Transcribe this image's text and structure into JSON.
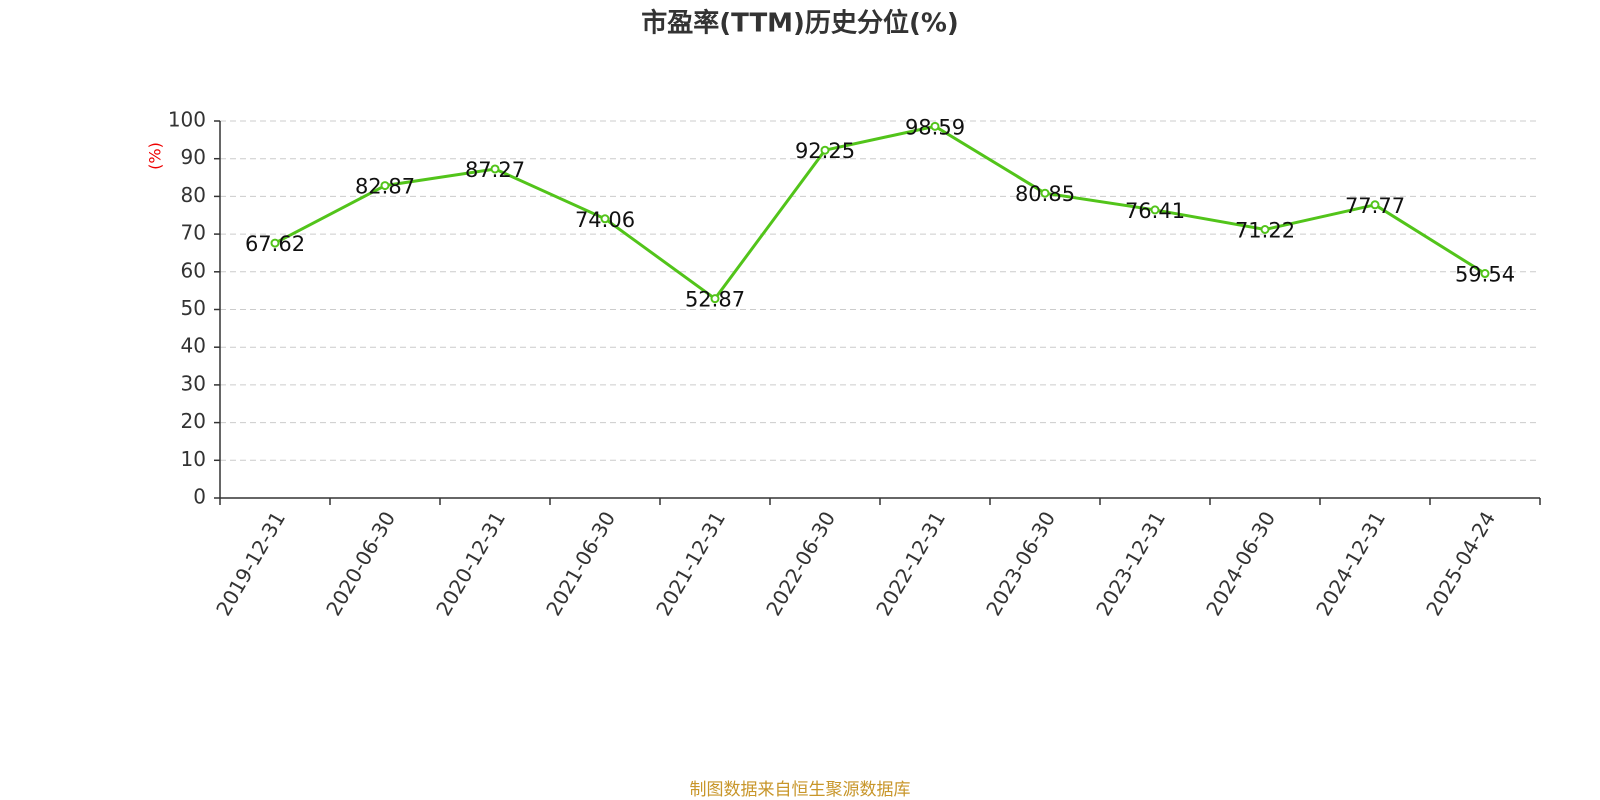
{
  "chart_data": {
    "type": "line",
    "title": "市盈率(TTM)历史分位(%)",
    "y_label": "(%)",
    "categories": [
      "2019-12-31",
      "2020-06-30",
      "2020-12-31",
      "2021-06-30",
      "2021-12-31",
      "2022-06-30",
      "2022-12-31",
      "2023-06-30",
      "2023-12-31",
      "2024-06-30",
      "2024-12-31",
      "2025-04-24"
    ],
    "values": [
      67.62,
      82.87,
      87.27,
      74.06,
      52.87,
      92.25,
      98.59,
      80.85,
      76.41,
      71.22,
      77.77,
      59.54
    ],
    "color": "#52c41a",
    "ylim": [
      0,
      100
    ],
    "yticks": [
      0,
      10,
      20,
      30,
      40,
      50,
      60,
      70,
      80,
      90,
      100
    ],
    "grid": true
  },
  "footer": "制图数据来自恒生聚源数据库"
}
